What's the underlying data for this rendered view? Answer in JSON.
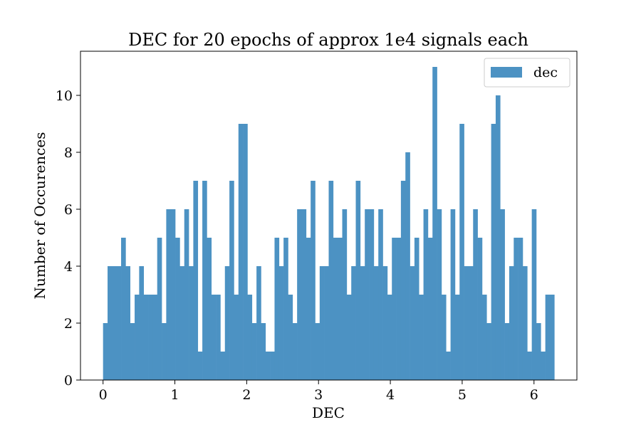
{
  "chart_data": {
    "type": "bar",
    "title": "DEC for 20 epochs of approx 1e4 signals each",
    "xlabel": "DEC",
    "ylabel": "Number of Occurences",
    "x_range": [
      0,
      6.2832
    ],
    "xlim": [
      -0.3142,
      6.5973
    ],
    "ylim": [
      0,
      11.55
    ],
    "x_ticks": [
      "0",
      "1",
      "2",
      "3",
      "4",
      "5",
      "6"
    ],
    "y_ticks": [
      "0",
      "2",
      "4",
      "6",
      "8",
      "10"
    ],
    "legend_position": "top-right",
    "grid": false,
    "series": [
      {
        "name": "dec",
        "color": "#4c92c3",
        "values": [
          2,
          4,
          4,
          4,
          5,
          4,
          2,
          3,
          4,
          3,
          3,
          3,
          5,
          2,
          6,
          6,
          5,
          4,
          6,
          4,
          7,
          1,
          7,
          5,
          3,
          3,
          1,
          4,
          7,
          3,
          9,
          9,
          3,
          2,
          4,
          2,
          1,
          1,
          5,
          4,
          5,
          3,
          2,
          6,
          6,
          5,
          7,
          2,
          4,
          4,
          7,
          5,
          5,
          6,
          3,
          4,
          7,
          4,
          6,
          6,
          4,
          6,
          4,
          3,
          5,
          5,
          7,
          8,
          4,
          5,
          3,
          6,
          5,
          11,
          6,
          3,
          1,
          6,
          3,
          9,
          4,
          4,
          6,
          5,
          3,
          2,
          9,
          10,
          6,
          2,
          4,
          5,
          5,
          4,
          1,
          6,
          2,
          1,
          3,
          3
        ]
      }
    ]
  }
}
